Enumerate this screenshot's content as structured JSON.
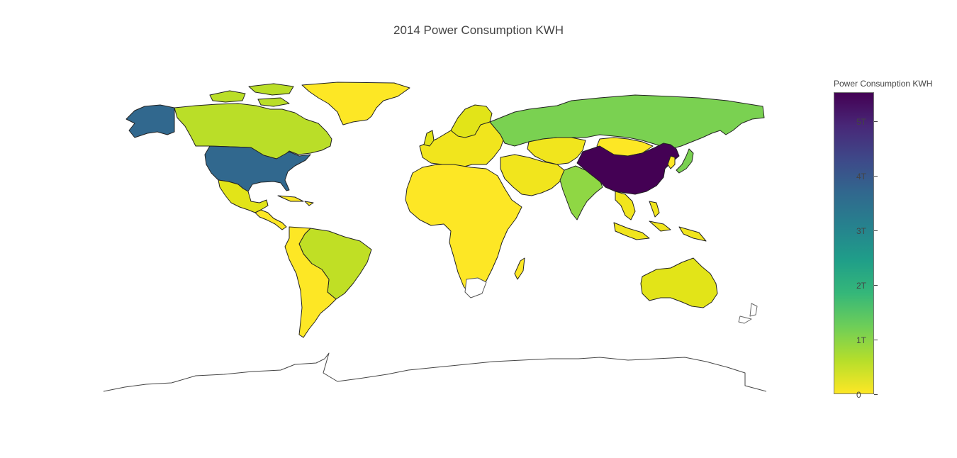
{
  "title": "2014 Power Consumption KWH",
  "colorbar": {
    "title": "Power Consumption KWH",
    "ticks": [
      "0",
      "1T",
      "2T",
      "3T",
      "4T",
      "5T"
    ],
    "tick_values": [
      0,
      1,
      2,
      3,
      4,
      5
    ],
    "max": 5.5,
    "colorscale": [
      "#fde725",
      "#b5de2b",
      "#6ece58",
      "#35b779",
      "#1f9e89",
      "#26828e",
      "#31688e",
      "#3e4989",
      "#482878",
      "#440154"
    ]
  },
  "chart_data": {
    "type": "choropleth",
    "title": "2014 Power Consumption KWH",
    "colorbar_title": "Power Consumption KWH",
    "projection": "equirectangular",
    "unit": "T KWH",
    "regions": [
      {
        "name": "China",
        "value": 5.5
      },
      {
        "name": "United States",
        "value": 3.9
      },
      {
        "name": "Russia",
        "value": 1.0
      },
      {
        "name": "India",
        "value": 0.9
      },
      {
        "name": "Japan",
        "value": 0.9
      },
      {
        "name": "Canada",
        "value": 0.5
      },
      {
        "name": "Germany",
        "value": 0.5
      },
      {
        "name": "France",
        "value": 0.45
      },
      {
        "name": "Brazil",
        "value": 0.5
      },
      {
        "name": "Korea",
        "value": 0.5
      },
      {
        "name": "United Kingdom",
        "value": 0.3
      },
      {
        "name": "Australia",
        "value": 0.22
      },
      {
        "name": "Mexico",
        "value": 0.25
      },
      {
        "name": "Europe (other)",
        "value": 0.15
      },
      {
        "name": "Middle East",
        "value": 0.15
      },
      {
        "name": "Africa",
        "value": 0.05
      },
      {
        "name": "South America (other)",
        "value": 0.08
      },
      {
        "name": "Southeast Asia",
        "value": 0.12
      },
      {
        "name": "Central Asia",
        "value": 0.1
      }
    ]
  }
}
